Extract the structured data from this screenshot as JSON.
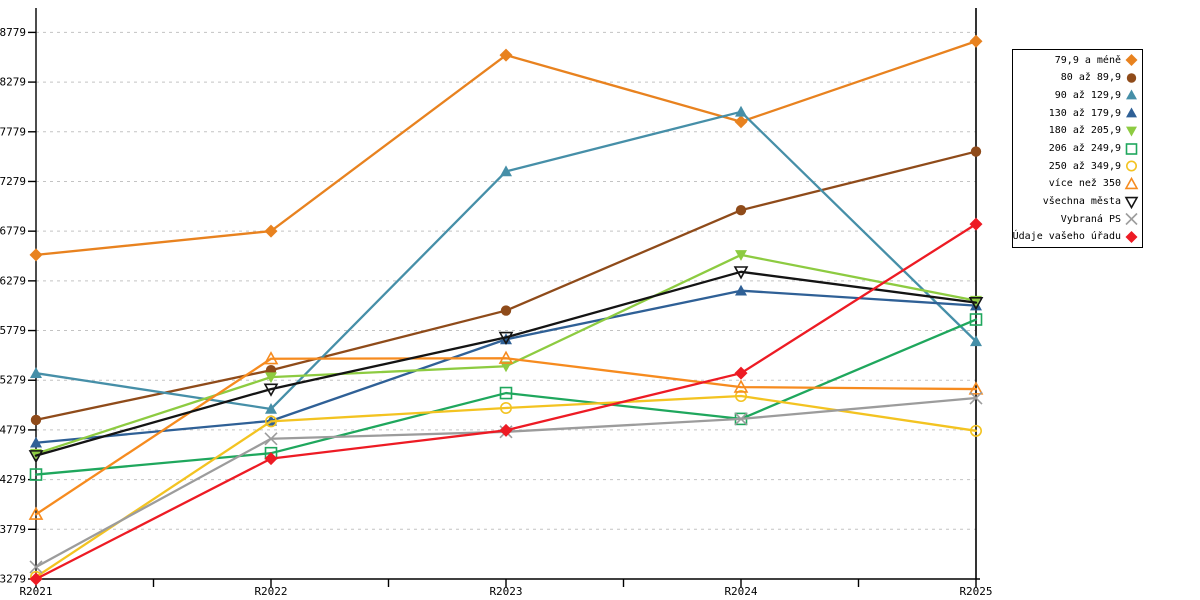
{
  "chart_data": {
    "type": "line",
    "x_categories": [
      "R2021",
      "R2022",
      "R2023",
      "R2024",
      "R2025"
    ],
    "y_ticks": [
      3279,
      3779,
      4279,
      4779,
      5279,
      5779,
      6279,
      6779,
      7279,
      7779,
      8279,
      8779
    ],
    "ylim": [
      3279,
      8779
    ],
    "grid": "horizontal-dashed",
    "grid_color": "#C3C3C3",
    "axis_color": "#000000",
    "legend_position": "top-right",
    "series": [
      {
        "name": "79,9 a méně",
        "color": "#E8821F",
        "marker": "diamond",
        "fill": "solid",
        "values": [
          6540,
          6780,
          8550,
          7880,
          8690
        ]
      },
      {
        "name": "80 až 89,9",
        "color": "#8F4B1A",
        "marker": "circle",
        "fill": "solid",
        "values": [
          4880,
          5380,
          5980,
          6990,
          7580
        ]
      },
      {
        "name": "90 až 129,9",
        "color": "#468FA8",
        "marker": "triangle-up",
        "fill": "solid",
        "values": [
          5350,
          4990,
          7380,
          7980,
          5670
        ]
      },
      {
        "name": "130 až 179,9",
        "color": "#2F6096",
        "marker": "triangle-up",
        "fill": "solid",
        "values": [
          4650,
          4870,
          5690,
          6180,
          6030
        ]
      },
      {
        "name": "180 až 205,9",
        "color": "#8DCB41",
        "marker": "triangle-down",
        "fill": "solid",
        "values": [
          4540,
          5310,
          5420,
          6540,
          6080
        ]
      },
      {
        "name": "206 až 249,9",
        "color": "#1FA75D",
        "marker": "square",
        "fill": "open",
        "values": [
          4330,
          4545,
          5150,
          4890,
          5890
        ]
      },
      {
        "name": "250 až 349,9",
        "color": "#F3C321",
        "marker": "circle",
        "fill": "open",
        "values": [
          3300,
          4865,
          5000,
          5120,
          4770
        ]
      },
      {
        "name": "více než 350",
        "color": "#F68B1F",
        "marker": "triangle-up",
        "fill": "open",
        "values": [
          3930,
          5495,
          5500,
          5210,
          5190
        ]
      },
      {
        "name": "všechna města",
        "color": "#141414",
        "marker": "triangle-down",
        "fill": "open",
        "values": [
          4520,
          5190,
          5710,
          6370,
          6060
        ]
      },
      {
        "name": "Vybraná PS",
        "color": "#9C9C9C",
        "marker": "x",
        "fill": "open",
        "values": [
          3400,
          4690,
          4760,
          4890,
          5100
        ]
      },
      {
        "name": "Údaje vašeho úřadu",
        "color": "#ED1B24",
        "marker": "diamond",
        "fill": "solid",
        "values": [
          3279,
          4490,
          4775,
          5350,
          6850
        ]
      }
    ]
  }
}
